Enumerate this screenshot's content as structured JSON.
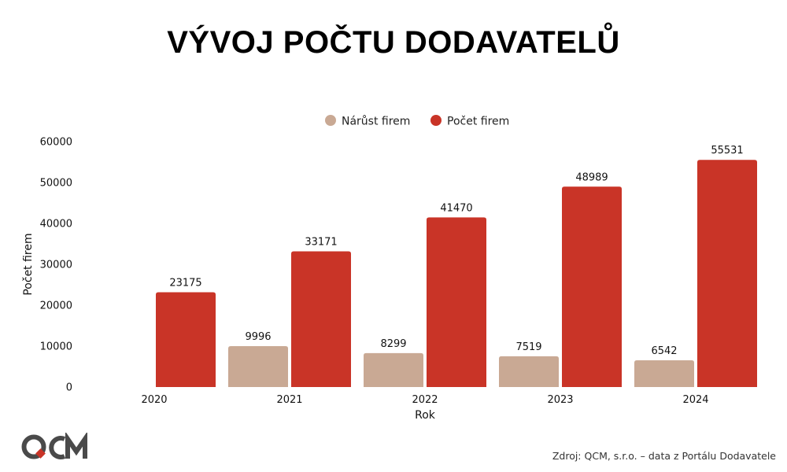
{
  "header": {
    "title": "VÝVOJ POČTU DODAVATELŮ"
  },
  "colors": {
    "growth": "#c9a994",
    "count": "#c93427",
    "logo_dark": "#4a4a4a",
    "logo_accent": "#c93427"
  },
  "footer": {
    "source": "Zdroj: QCM, s.r.o. – data z Portálu Dodavatele"
  },
  "logo": {
    "text": "QCM"
  },
  "chart_data": {
    "type": "bar",
    "categories": [
      "2020",
      "2021",
      "2022",
      "2023",
      "2024"
    ],
    "series": [
      {
        "name": "Nárůst firem",
        "values": [
          null,
          9996,
          8299,
          7519,
          6542
        ]
      },
      {
        "name": "Počet firem",
        "values": [
          23175,
          33171,
          41470,
          48989,
          55531
        ]
      }
    ],
    "xlabel": "Rok",
    "ylabel": "Počet firem",
    "ylim": [
      0,
      60000
    ],
    "yticks": [
      0,
      10000,
      20000,
      30000,
      40000,
      50000,
      60000
    ],
    "legend_position": "top-center",
    "grid": false
  }
}
